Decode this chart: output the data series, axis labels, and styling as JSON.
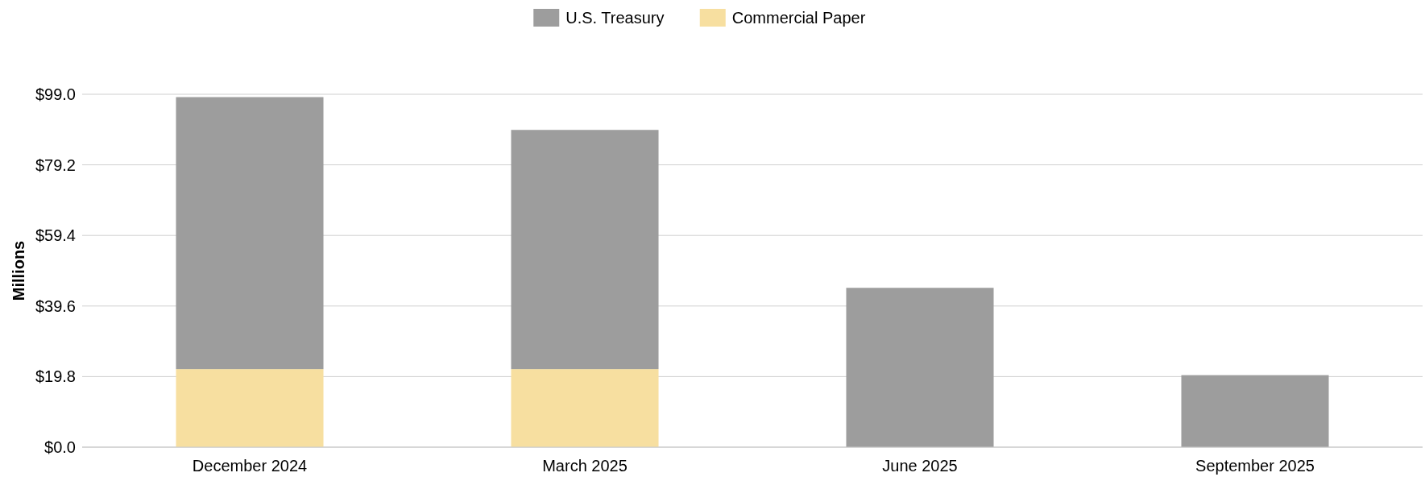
{
  "chart_data": {
    "type": "bar",
    "stacked": true,
    "ylabel": "Millions",
    "categories": [
      "December 2024",
      "March 2025",
      "June 2025",
      "September 2025"
    ],
    "series": [
      {
        "name": "Commercial Paper",
        "color": "#f7dfa0",
        "values": [
          21.9,
          21.9,
          null,
          null
        ]
      },
      {
        "name": "U.S. Treasury",
        "color": "#9d9d9d",
        "values": [
          76.3,
          67.1,
          44.7,
          20.2
        ]
      }
    ],
    "ylim": [
      0,
      99
    ],
    "yticks": [
      {
        "value": 0,
        "label": "$0.0"
      },
      {
        "value": 19.8,
        "label": "$19.8"
      },
      {
        "value": 39.6,
        "label": "$39.6"
      },
      {
        "value": 59.4,
        "label": "$59.4"
      },
      {
        "value": 79.2,
        "label": "$79.2"
      },
      {
        "value": 99,
        "label": "$99.0"
      }
    ],
    "grid": "y",
    "legend": "top"
  }
}
